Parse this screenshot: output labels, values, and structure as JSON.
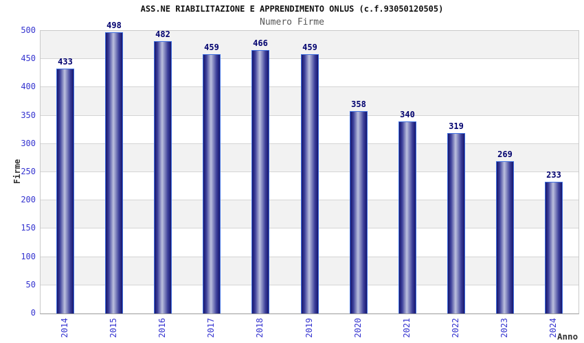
{
  "chart_data": {
    "type": "bar",
    "title": "ASS.NE RIABILITAZIONE E APPRENDIMENTO ONLUS (c.f.93050120505)",
    "subtitle": "Numero Firme",
    "xlabel": "Anno",
    "ylabel": "Firme",
    "categories": [
      "2014",
      "2015",
      "2016",
      "2017",
      "2018",
      "2019",
      "2020",
      "2021",
      "2022",
      "2023",
      "2024"
    ],
    "values": [
      433,
      498,
      482,
      459,
      466,
      459,
      358,
      340,
      319,
      269,
      233
    ],
    "ylim": [
      0,
      500
    ],
    "ytick_step": 50,
    "yticks": [
      500,
      450,
      400,
      350,
      300,
      250,
      200,
      150,
      100,
      50,
      0
    ],
    "grid": true,
    "legend": "none",
    "bar_labels_shown": true,
    "colors": {
      "bar_edge_dark": "#16166e",
      "bar_mid": "#3c3f9a",
      "bar_center_light": "#bcc0de",
      "bar_border": "#4070e0",
      "value_label": "#00006e",
      "tick_label": "#3433cf",
      "band_gray": "#f2f2f2",
      "band_white": "#ffffff",
      "gridline": "#d4d4d4",
      "title_text": "#111111",
      "subtitle_text": "#555555",
      "axis_label_text": "#333333"
    }
  }
}
